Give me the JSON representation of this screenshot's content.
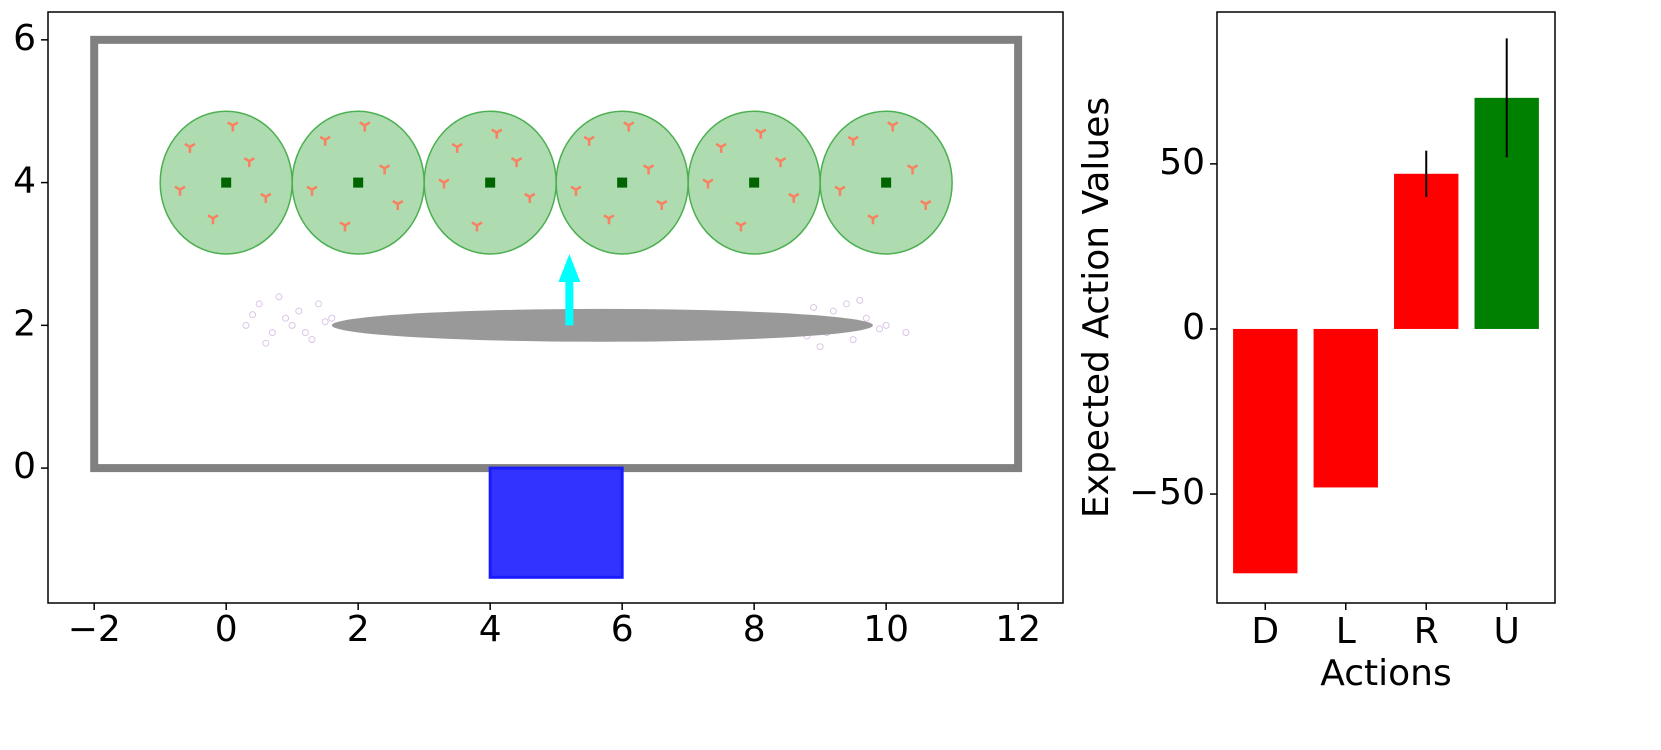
{
  "chart_data": [
    {
      "type": "scene",
      "xlim": [
        -2.7,
        12.68
      ],
      "ylim": [
        -1.89,
        6.39
      ],
      "xticks": [
        {
          "value": -2,
          "label": "−2"
        },
        0,
        2,
        4,
        6,
        8,
        10,
        12
      ],
      "yticks": [
        0,
        2,
        4,
        6
      ],
      "border": {
        "x": [
          -2,
          12
        ],
        "y": [
          0,
          6
        ],
        "color": "#808080"
      },
      "zones": {
        "x": [
          0,
          2,
          4,
          6,
          8,
          10
        ],
        "y": [
          4,
          4,
          4,
          4,
          4,
          4
        ],
        "radius": 1,
        "color": "#4caf50"
      },
      "targets": {
        "x": [
          -0.55,
          0.35,
          -0.2,
          0.6,
          -0.7,
          0.1,
          1.5,
          2.4,
          1.8,
          2.6,
          1.3,
          2.1,
          3.5,
          4.4,
          3.8,
          4.6,
          3.3,
          4.1,
          5.5,
          6.4,
          5.8,
          6.6,
          5.3,
          6.1,
          7.5,
          8.4,
          7.8,
          8.6,
          7.3,
          8.1,
          9.5,
          10.4,
          9.8,
          10.6,
          9.3,
          10.1
        ],
        "y": [
          4.5,
          4.3,
          3.5,
          3.8,
          3.9,
          4.8,
          4.6,
          4.2,
          3.4,
          3.7,
          3.9,
          4.8,
          4.5,
          4.3,
          3.4,
          3.8,
          4.0,
          4.7,
          4.6,
          4.2,
          3.5,
          3.7,
          3.9,
          4.8,
          4.5,
          4.3,
          3.4,
          3.8,
          4.0,
          4.7,
          4.6,
          4.2,
          3.5,
          3.7,
          3.9,
          4.8
        ],
        "color": "#fa8060"
      },
      "particles": {
        "x": [
          0.3,
          0.5,
          0.7,
          0.9,
          1.0,
          1.1,
          1.3,
          1.5,
          0.6,
          0.8,
          1.2,
          1.6,
          0.4,
          1.4,
          8.7,
          8.9,
          9.1,
          9.3,
          9.4,
          9.5,
          9.7,
          9.9,
          8.8,
          9.2,
          9.6,
          10.0,
          10.3,
          9.0
        ],
        "y": [
          2.0,
          2.3,
          1.9,
          2.1,
          2.0,
          2.2,
          1.8,
          2.05,
          1.75,
          2.4,
          1.9,
          2.1,
          2.15,
          2.3,
          2.0,
          2.25,
          1.9,
          2.05,
          2.3,
          1.8,
          2.1,
          1.95,
          1.85,
          2.2,
          2.35,
          2.0,
          1.9,
          1.7
        ],
        "color": "#9b59b6"
      },
      "agent": {
        "x": 5.7,
        "y": 2,
        "half_width": 4.1,
        "half_height": 0.23,
        "color": "#999999"
      },
      "arrow": {
        "x": 5.2,
        "y": 2,
        "dy": 1,
        "color": "#00ffff"
      },
      "platform": {
        "x": [
          4,
          6
        ],
        "y": [
          -1.53,
          0
        ],
        "color": "#3333ff"
      }
    },
    {
      "type": "bar",
      "xlabel": "Actions",
      "ylabel": "Expected Action Values",
      "categories": [
        "D",
        "L",
        "R",
        "U"
      ],
      "values": [
        -74,
        -48,
        47,
        70
      ],
      "errors": [
        0,
        0,
        7,
        18
      ],
      "colors": [
        "#ff0000",
        "#ff0000",
        "#ff0000",
        "#008000"
      ],
      "ylim": [
        -83,
        96
      ],
      "yticks": [
        {
          "value": -50,
          "label": "−50"
        },
        0,
        50
      ]
    }
  ]
}
